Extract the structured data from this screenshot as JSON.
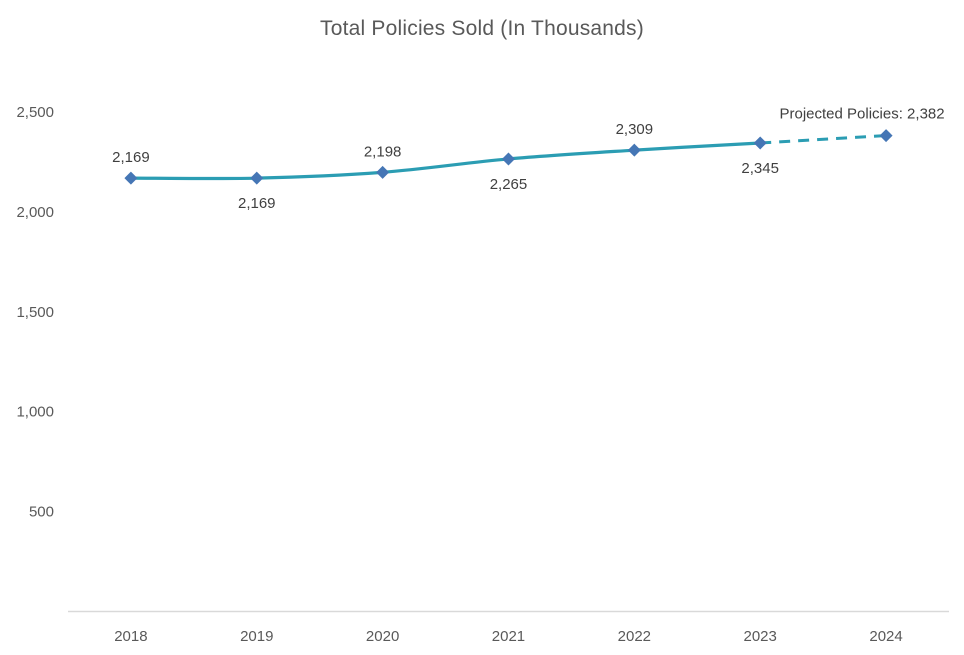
{
  "title": "Total Policies Sold (In Thousands)",
  "chart_data": {
    "type": "line",
    "title": "Total Policies Sold (In Thousands)",
    "categories": [
      "2018",
      "2019",
      "2020",
      "2021",
      "2022",
      "2023",
      "2024"
    ],
    "series": [
      {
        "name": "Total Policies Sold",
        "values": [
          2169,
          2169,
          2198,
          2265,
          2309,
          2345,
          2382
        ]
      }
    ],
    "data_labels": [
      {
        "text": "2,169",
        "position": "above"
      },
      {
        "text": "2,169",
        "position": "below"
      },
      {
        "text": "2,198",
        "position": "above"
      },
      {
        "text": "2,265",
        "position": "below"
      },
      {
        "text": "2,309",
        "position": "above"
      },
      {
        "text": "2,345",
        "position": "below"
      },
      {
        "text": "Projected Policies: 2,382",
        "position": "above"
      }
    ],
    "projection": {
      "segment": [
        "2023",
        "2024"
      ],
      "line_style": "dashed",
      "annotation": "Projected Policies: 2,382",
      "value": 2382
    },
    "xlabel": "",
    "ylabel": "",
    "ylim": [
      0,
      2500
    ],
    "yticks": [
      {
        "value": 500,
        "label": "500"
      },
      {
        "value": 1000,
        "label": "1,000"
      },
      {
        "value": 1500,
        "label": "1,500"
      },
      {
        "value": 2000,
        "label": "2,000"
      },
      {
        "value": 2500,
        "label": "2,500"
      }
    ],
    "grid": false,
    "legend": "none",
    "colors": {
      "line": "#2B9DB3",
      "marker": "#4576B5",
      "axis_line": "#D9D9D9",
      "title_text": "#595959",
      "axis_text": "#595959",
      "label_text": "#404040"
    }
  }
}
